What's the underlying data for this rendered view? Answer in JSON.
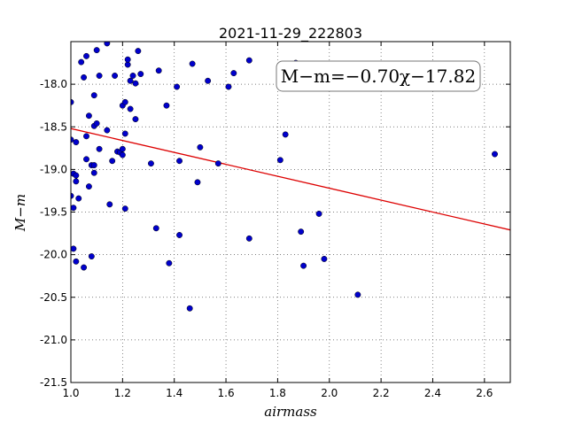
{
  "chart_data": {
    "type": "scatter",
    "title": "2021-11-29_222803",
    "xlabel": "airmass",
    "ylabel": "M−m",
    "xlim": [
      1.0,
      2.7
    ],
    "ylim": [
      -21.5,
      -17.5
    ],
    "x_ticks": [
      "1.0",
      "1.2",
      "1.4",
      "1.6",
      "1.8",
      "2.0",
      "2.2",
      "2.4",
      "2.6"
    ],
    "x_tick_values": [
      1.0,
      1.2,
      1.4,
      1.6,
      1.8,
      2.0,
      2.2,
      2.4,
      2.6
    ],
    "y_ticks": [
      "-18.0",
      "-18.5",
      "-19.0",
      "-19.5",
      "-20.0",
      "-20.5",
      "-21.0",
      "-21.5"
    ],
    "y_tick_values": [
      -18.0,
      -18.5,
      -19.0,
      -19.5,
      -20.0,
      -20.5,
      -21.0,
      -21.5
    ],
    "grid": true,
    "point_color": "#0000cc",
    "fit_color": "#dd0000",
    "annotation": "M−m=−0.70χ−17.82",
    "fit": {
      "slope": -0.7,
      "intercept": -17.82
    },
    "points": [
      [
        1.0,
        -18.21
      ],
      [
        1.0,
        -18.65
      ],
      [
        1.0,
        -19.31
      ],
      [
        1.01,
        -19.45
      ],
      [
        1.01,
        -19.93
      ],
      [
        1.01,
        -19.05
      ],
      [
        1.02,
        -19.14
      ],
      [
        1.02,
        -20.08
      ],
      [
        1.02,
        -18.68
      ],
      [
        1.02,
        -19.07
      ],
      [
        1.03,
        -19.34
      ],
      [
        1.04,
        -17.74
      ],
      [
        1.05,
        -17.92
      ],
      [
        1.05,
        -20.15
      ],
      [
        1.06,
        -17.67
      ],
      [
        1.06,
        -18.88
      ],
      [
        1.06,
        -18.61
      ],
      [
        1.07,
        -18.37
      ],
      [
        1.07,
        -19.2
      ],
      [
        1.08,
        -18.95
      ],
      [
        1.08,
        -20.02
      ],
      [
        1.09,
        -18.13
      ],
      [
        1.09,
        -18.49
      ],
      [
        1.09,
        -19.04
      ],
      [
        1.09,
        -18.95
      ],
      [
        1.1,
        -17.6
      ],
      [
        1.1,
        -18.46
      ],
      [
        1.11,
        -17.9
      ],
      [
        1.11,
        -18.76
      ],
      [
        1.14,
        -17.52
      ],
      [
        1.14,
        -18.54
      ],
      [
        1.15,
        -19.41
      ],
      [
        1.16,
        -18.9
      ],
      [
        1.17,
        -17.9
      ],
      [
        1.18,
        -18.79
      ],
      [
        1.19,
        -18.8
      ],
      [
        1.2,
        -18.76
      ],
      [
        1.2,
        -18.83
      ],
      [
        1.2,
        -18.25
      ],
      [
        1.21,
        -18.21
      ],
      [
        1.21,
        -19.46
      ],
      [
        1.21,
        -18.58
      ],
      [
        1.22,
        -17.77
      ],
      [
        1.22,
        -17.71
      ],
      [
        1.23,
        -17.96
      ],
      [
        1.23,
        -18.29
      ],
      [
        1.24,
        -17.9
      ],
      [
        1.25,
        -18.41
      ],
      [
        1.25,
        -17.99
      ],
      [
        1.26,
        -17.61
      ],
      [
        1.27,
        -17.88
      ],
      [
        1.31,
        -18.93
      ],
      [
        1.33,
        -19.69
      ],
      [
        1.34,
        -17.84
      ],
      [
        1.37,
        -18.25
      ],
      [
        1.38,
        -20.1
      ],
      [
        1.41,
        -18.03
      ],
      [
        1.42,
        -18.9
      ],
      [
        1.42,
        -19.77
      ],
      [
        1.46,
        -20.63
      ],
      [
        1.47,
        -17.76
      ],
      [
        1.49,
        -19.15
      ],
      [
        1.5,
        -18.74
      ],
      [
        1.53,
        -17.96
      ],
      [
        1.57,
        -18.93
      ],
      [
        1.61,
        -18.03
      ],
      [
        1.63,
        -17.87
      ],
      [
        1.69,
        -17.72
      ],
      [
        1.69,
        -19.81
      ],
      [
        1.81,
        -18.89
      ],
      [
        1.83,
        -18.59
      ],
      [
        1.87,
        -17.75
      ],
      [
        1.89,
        -19.73
      ],
      [
        1.9,
        -20.13
      ],
      [
        1.96,
        -19.52
      ],
      [
        1.98,
        -20.05
      ],
      [
        2.11,
        -20.47
      ],
      [
        2.64,
        -18.82
      ]
    ]
  }
}
